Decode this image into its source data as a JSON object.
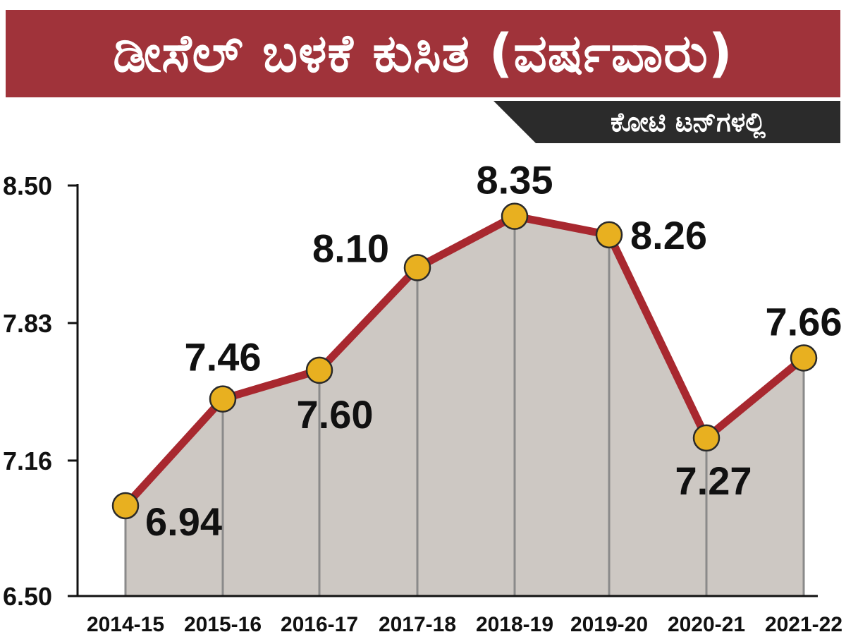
{
  "header": {
    "title": "ಡೀಸೆಲ್ ಬಳಕೆ ಕುಸಿತ (ವರ್ಷವಾರು)",
    "unit": "ಕೋಟಿ ಟನ್‌ಗಳಲ್ಲಿ"
  },
  "chart_data": {
    "type": "line",
    "title": "ಡೀಸೆಲ್ ಬಳಕೆ ಕುಸಿತ (ವರ್ಷವಾರು)",
    "unit": "ಕೋಟಿ ಟನ್‌ಗಳಲ್ಲಿ",
    "categories": [
      "2014-15",
      "2015-16",
      "2016-17",
      "2017-18",
      "2018-19",
      "2019-20",
      "2020-21",
      "2021-22"
    ],
    "values": [
      6.94,
      7.46,
      7.6,
      8.1,
      8.35,
      8.26,
      7.27,
      7.66
    ],
    "value_labels": [
      "6.94",
      "7.46",
      "7.60",
      "8.10",
      "8.35",
      "8.26",
      "7.27",
      "7.66"
    ],
    "yticks": [
      "8.50",
      "7.83",
      "7.16",
      "6.50"
    ],
    "ylim": [
      6.5,
      8.5
    ],
    "area_fill": true,
    "grid": false,
    "colors": {
      "line": "#a8282f",
      "marker": "#e8b020",
      "area": "#cdc8c3",
      "dropline": "#8a8a8a",
      "title_bg": "#a0333a",
      "unit_bg": "#2b2b2b"
    }
  }
}
